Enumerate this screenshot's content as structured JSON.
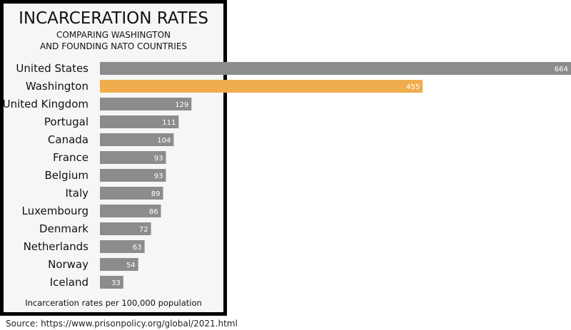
{
  "chart_data": {
    "type": "bar",
    "orientation": "horizontal",
    "title": "INCARCERATION RATES",
    "subtitle": [
      "COMPARING WASHINGTON",
      "AND FOUNDING NATO COUNTRIES"
    ],
    "xlabel": "Incarceration rates per 100,000 population",
    "categories": [
      "United States",
      "Washington",
      "United Kingdom",
      "Portugal",
      "Canada",
      "France",
      "Belgium",
      "Italy",
      "Luxembourg",
      "Denmark",
      "Netherlands",
      "Norway",
      "Iceland"
    ],
    "values": [
      664,
      455,
      129,
      111,
      104,
      93,
      93,
      89,
      86,
      72,
      63,
      54,
      33
    ],
    "highlight": "Washington",
    "xlim": [
      0,
      664
    ],
    "grid": false,
    "colors": {
      "bar": "#8c8c8c",
      "highlight": "#f0ad4e",
      "frame": "#000000",
      "panel": "#f6f6f6"
    }
  },
  "source": "Source: https://www.prisonpolicy.org/global/2021.html"
}
